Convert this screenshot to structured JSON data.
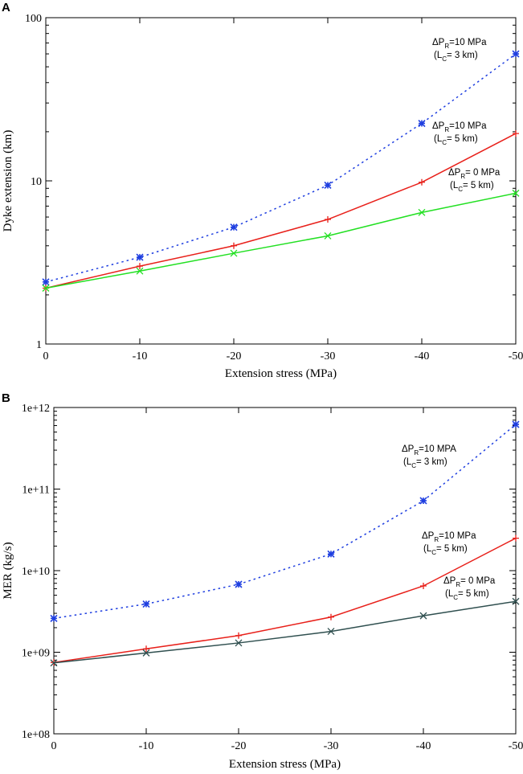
{
  "chart_data": [
    {
      "panel": "A",
      "type": "line",
      "yscale": "log",
      "xlabel": "Extension stress (MPa)",
      "ylabel": "Dyke extension (km)",
      "x": [
        0,
        -10,
        -20,
        -30,
        -40,
        -50
      ],
      "x_tick_labels": [
        "0",
        "-10",
        "-20",
        "-30",
        "-40",
        "-50"
      ],
      "xlim": [
        0,
        -50
      ],
      "ylim": [
        1,
        100
      ],
      "y_ticks": [
        1,
        10,
        100
      ],
      "y_tick_labels": [
        "1",
        "10",
        "100"
      ],
      "series": [
        {
          "name": "ΔPR=10 MPa (LC= 3 km)",
          "color": "#1f3fe0",
          "style": "dotted",
          "marker": "asterisk",
          "values": [
            2.4,
            3.4,
            5.2,
            9.4,
            22.5,
            60
          ],
          "label": {
            "l1a": "ΔP",
            "l1sub": "R",
            "l1b": "=10 MPa",
            "l2a": "(L",
            "l2sub": "C",
            "l2b": "= 3 km)"
          }
        },
        {
          "name": "ΔPR=10 MPa (LC= 5 km)",
          "color": "#e8201a",
          "style": "solid",
          "marker": "plus",
          "values": [
            2.2,
            3.0,
            4.0,
            5.8,
            9.8,
            19.5
          ],
          "label": {
            "l1a": "ΔP",
            "l1sub": "R",
            "l1b": "=10 MPa",
            "l2a": "(L",
            "l2sub": "C",
            "l2b": "= 5 km)"
          }
        },
        {
          "name": "ΔPR= 0 MPa (LC= 5 km)",
          "color": "#22e022",
          "style": "solid",
          "marker": "x",
          "values": [
            2.2,
            2.8,
            3.6,
            4.6,
            6.4,
            8.4
          ],
          "label": {
            "l1a": "ΔP",
            "l1sub": "R",
            "l1b": "= 0 MPa",
            "l2a": "(L",
            "l2sub": "C",
            "l2b": "= 5 km)"
          }
        }
      ]
    },
    {
      "panel": "B",
      "type": "line",
      "yscale": "log",
      "xlabel": "Extension stress (MPa)",
      "ylabel": "MER (kg/s)",
      "x": [
        0,
        -10,
        -20,
        -30,
        -40,
        -50
      ],
      "x_tick_labels": [
        "0",
        "-10",
        "-20",
        "-30",
        "-40",
        "-50"
      ],
      "xlim": [
        0,
        -50
      ],
      "ylim": [
        100000000,
        1000000000000
      ],
      "y_ticks": [
        100000000,
        1000000000,
        10000000000,
        100000000000,
        1000000000000
      ],
      "y_tick_labels": [
        "1e+08",
        "1e+09",
        "1e+10",
        "1e+11",
        "1e+12"
      ],
      "series": [
        {
          "name": "ΔPR=10 MPA (LC= 3 km)",
          "color": "#1f3fe0",
          "style": "dotted",
          "marker": "asterisk",
          "values": [
            2600000000,
            3900000000,
            6800000000,
            16000000000,
            72000000000,
            620000000000
          ],
          "label": {
            "l1a": "ΔP",
            "l1sub": "R",
            "l1b": "=10 MPA",
            "l2a": "(L",
            "l2sub": "C",
            "l2b": "= 3 km)"
          }
        },
        {
          "name": "ΔPR=10 MPa (LC= 5 km)",
          "color": "#e8201a",
          "style": "solid",
          "marker": "plus",
          "values": [
            750000000,
            1100000000,
            1600000000,
            2700000000,
            6500000000,
            25000000000
          ],
          "label": {
            "l1a": "ΔP",
            "l1sub": "R",
            "l1b": "=10 MPa",
            "l2a": "(L",
            "l2sub": "C",
            "l2b": "= 5 km)"
          }
        },
        {
          "name": "ΔPR= 0 MPa (LC= 5 km)",
          "color": "#2f4f4f",
          "style": "solid",
          "marker": "x",
          "values": [
            740000000,
            980000000,
            1300000000,
            1800000000,
            2800000000,
            4200000000
          ],
          "label": {
            "l1a": "ΔP",
            "l1sub": "R",
            "l1b": "= 0 MPa",
            "l2a": "(L",
            "l2sub": "C",
            "l2b": "= 5 km)"
          }
        }
      ]
    }
  ]
}
